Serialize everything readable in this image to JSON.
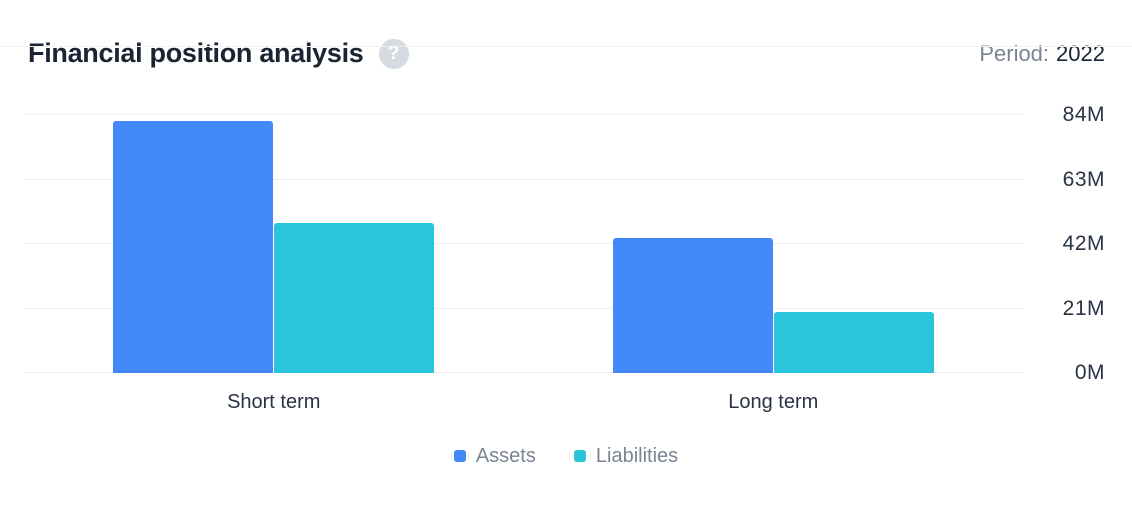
{
  "header": {
    "title": "Financial position analysis",
    "help_icon": "?",
    "period_label": "Period:",
    "period_value": "2022"
  },
  "chart_data": {
    "type": "bar",
    "title": "Financial position analysis",
    "period": "2022",
    "categories": [
      "Short term",
      "Long term"
    ],
    "series": [
      {
        "name": "Assets",
        "color": "#4489fa",
        "values": [
          82,
          44
        ]
      },
      {
        "name": "Liabilities",
        "color": "#2bc5db",
        "values": [
          49,
          20
        ]
      }
    ],
    "unit": "M",
    "ylim": [
      0,
      84
    ],
    "ytick_values": [
      0,
      21,
      42,
      63,
      84
    ],
    "yticks": [
      "0M",
      "21M",
      "42M",
      "63M",
      "84M"
    ],
    "xlabel": "",
    "ylabel": "",
    "grid": true,
    "y_axis_side": "right",
    "legend_position": "bottom"
  },
  "colors": {
    "assets": "#4489fa",
    "liabilities": "#2bc5db",
    "gridline": "#eef0f6",
    "title_text": "#1a2433",
    "muted_text": "#7b8494",
    "axis_text": "#2a3344",
    "help_icon_bg": "#d6dae1"
  }
}
